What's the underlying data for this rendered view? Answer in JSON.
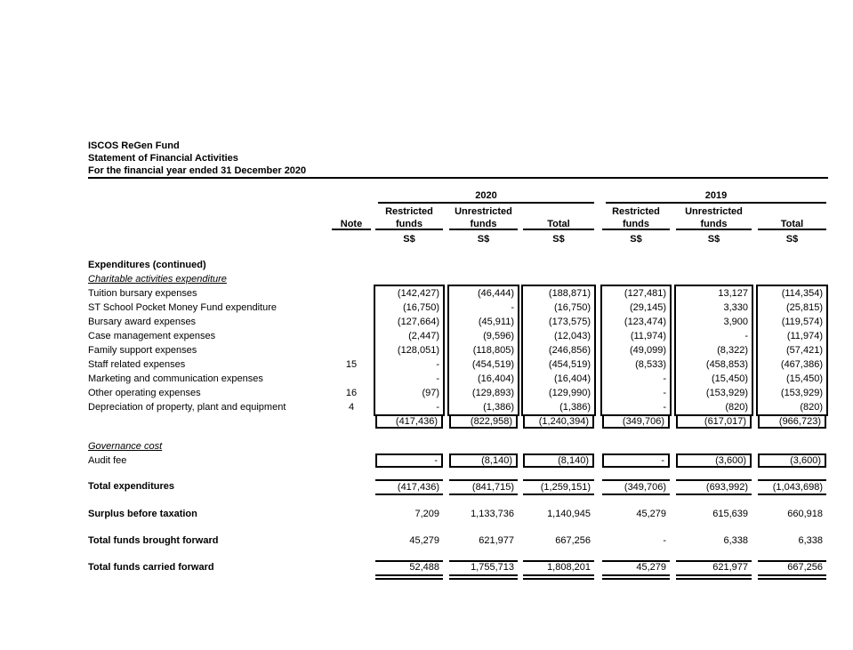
{
  "header": {
    "org": "ISCOS ReGen Fund",
    "title": "Statement of Financial Activities",
    "period": "For the financial year ended 31 December 2020"
  },
  "columns": {
    "note": "Note",
    "year_2020": "2020",
    "year_2019": "2019",
    "restricted": "Restricted",
    "unrestricted": "Unrestricted",
    "funds": "funds",
    "total": "Total",
    "currency": "S$"
  },
  "sections": {
    "expenditures_heading": "Expenditures (continued)",
    "charitable_heading": "Charitable activities expenditure",
    "governance_heading": "Governance cost"
  },
  "charitable_rows": [
    {
      "label": "Tuition bursary expenses",
      "note": "",
      "values": [
        "(142,427)",
        "(46,444)",
        "(188,871)",
        "(127,481)",
        "13,127",
        "(114,354)"
      ]
    },
    {
      "label": "ST School Pocket Money Fund expenditure",
      "note": "",
      "values": [
        "(16,750)",
        "-",
        "(16,750)",
        "(29,145)",
        "3,330",
        "(25,815)"
      ]
    },
    {
      "label": "Bursary award expenses",
      "note": "",
      "values": [
        "(127,664)",
        "(45,911)",
        "(173,575)",
        "(123,474)",
        "3,900",
        "(119,574)"
      ]
    },
    {
      "label": "Case management expenses",
      "note": "",
      "values": [
        "(2,447)",
        "(9,596)",
        "(12,043)",
        "(11,974)",
        "-",
        "(11,974)"
      ]
    },
    {
      "label": "Family support expenses",
      "note": "",
      "values": [
        "(128,051)",
        "(118,805)",
        "(246,856)",
        "(49,099)",
        "(8,322)",
        "(57,421)"
      ]
    },
    {
      "label": "Staff related expenses",
      "note": "15",
      "values": [
        "-",
        "(454,519)",
        "(454,519)",
        "(8,533)",
        "(458,853)",
        "(467,386)"
      ]
    },
    {
      "label": "Marketing and communication expenses",
      "note": "",
      "values": [
        "-",
        "(16,404)",
        "(16,404)",
        "-",
        "(15,450)",
        "(15,450)"
      ]
    },
    {
      "label": "Other operating expenses",
      "note": "16",
      "values": [
        "(97)",
        "(129,893)",
        "(129,990)",
        "-",
        "(153,929)",
        "(153,929)"
      ]
    },
    {
      "label": "Depreciation of property, plant and equipment",
      "note": "4",
      "values": [
        "-",
        "(1,386)",
        "(1,386)",
        "-",
        "(820)",
        "(820)"
      ]
    }
  ],
  "charitable_subtotal": {
    "values": [
      "(417,436)",
      "(822,958)",
      "(1,240,394)",
      "(349,706)",
      "(617,017)",
      "(966,723)"
    ]
  },
  "governance_rows": [
    {
      "label": "Audit fee",
      "values": [
        "-",
        "(8,140)",
        "(8,140)",
        "-",
        "(3,600)",
        "(3,600)"
      ]
    }
  ],
  "totals": {
    "total_expenditures": {
      "label": "Total expenditures",
      "values": [
        "(417,436)",
        "(841,715)",
        "(1,259,151)",
        "(349,706)",
        "(693,992)",
        "(1,043,698)"
      ]
    },
    "surplus_before_taxation": {
      "label": "Surplus before taxation",
      "values": [
        "7,209",
        "1,133,736",
        "1,140,945",
        "45,279",
        "615,639",
        "660,918"
      ]
    },
    "funds_brought_forward": {
      "label": "Total funds brought forward",
      "values": [
        "45,279",
        "621,977",
        "667,256",
        "-",
        "6,338",
        "6,338"
      ]
    },
    "funds_carried_forward": {
      "label": "Total funds carried forward",
      "values": [
        "52,488",
        "1,755,713",
        "1,808,201",
        "45,279",
        "621,977",
        "667,256"
      ]
    }
  },
  "colors": {
    "text": "#000000",
    "background": "#ffffff"
  }
}
